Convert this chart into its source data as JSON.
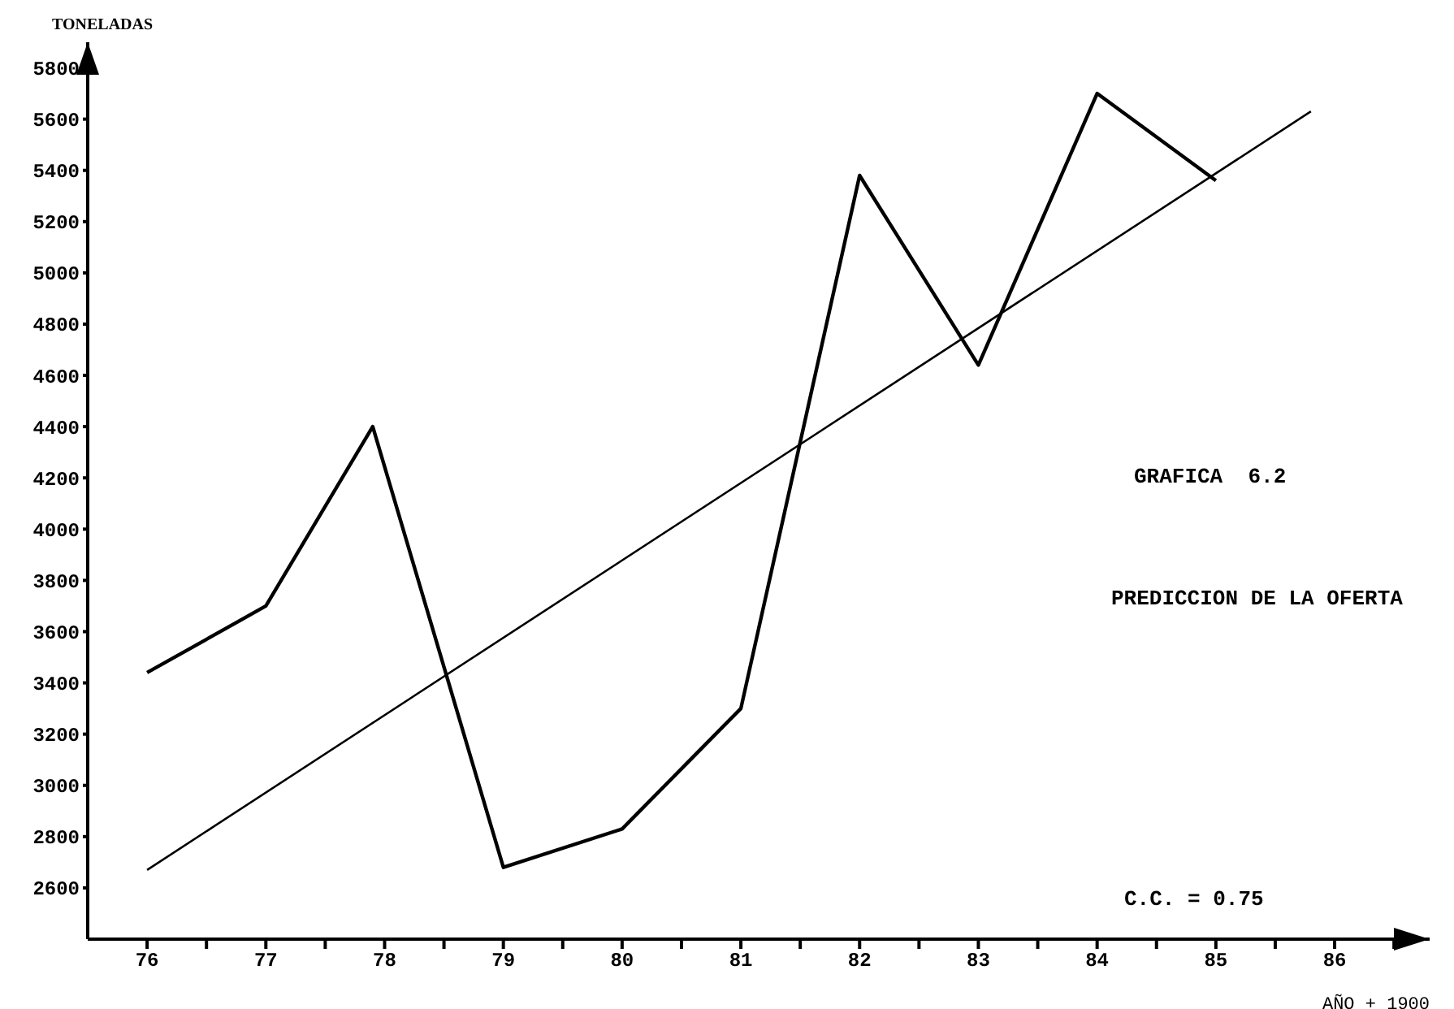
{
  "chart_data": {
    "type": "line",
    "xlabel": "AÑO + 1900",
    "ylabel": "TONELADAS",
    "annotations": [
      "GRAFICA  6.2",
      "PREDICCION DE LA OFERTA",
      "C.C. = 0.75"
    ],
    "series": [
      {
        "color": "#000000",
        "x": [
          76,
          77,
          77.9,
          79,
          80,
          81,
          82,
          83,
          84,
          85
        ],
        "values": [
          3440,
          3700,
          4400,
          2680,
          2830,
          3300,
          5380,
          4640,
          5700,
          5360
        ]
      },
      {
        "type": "line",
        "color": "#000000",
        "x": [
          76,
          85.8
        ],
        "values": [
          2670,
          5630
        ]
      }
    ],
    "xlim": [
      75.5,
      86.8
    ],
    "xticks": [
      76,
      {
        "value": 76.5,
        "label": null
      },
      77,
      {
        "value": 77.5,
        "label": null
      },
      78,
      {
        "value": 78.5,
        "label": null
      },
      79,
      {
        "value": 79.5,
        "label": null
      },
      80,
      {
        "value": 80.5,
        "label": null
      },
      81,
      {
        "value": 81.5,
        "label": null
      },
      82,
      {
        "value": 82.5,
        "label": null
      },
      83,
      {
        "value": 83.5,
        "label": null
      },
      84,
      {
        "value": 84.5,
        "label": null
      },
      85,
      {
        "value": 85.5,
        "label": null
      },
      86,
      {
        "value": 86.5,
        "label": null
      }
    ],
    "ylim": [
      2400,
      5900
    ],
    "yticks": [
      2600,
      2800,
      3000,
      3200,
      3400,
      3600,
      3800,
      4000,
      4200,
      4400,
      4600,
      4800,
      5000,
      5200,
      5400,
      5600,
      5800
    ]
  }
}
